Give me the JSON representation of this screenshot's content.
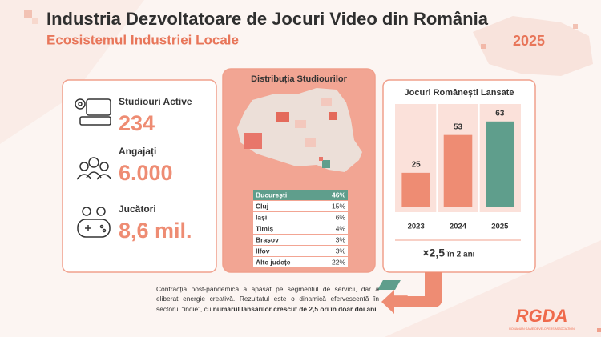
{
  "header": {
    "title": "Industria Dezvoltatoare de Jocuri Video din România",
    "subtitle": "Ecosistemul Industriei Locale",
    "year": "2025"
  },
  "stats": [
    {
      "label": "Studiouri Active",
      "value": "234"
    },
    {
      "label": "Angajați",
      "value": "6.000"
    },
    {
      "label": "Jucători",
      "value": "8,6 mil."
    }
  ],
  "distribution": {
    "title": "Distribuția Studiourilor",
    "rows": [
      [
        "București",
        "46%"
      ],
      [
        "Cluj",
        "15%"
      ],
      [
        "Iași",
        "6%"
      ],
      [
        "Timiș",
        "4%"
      ],
      [
        "Brașov",
        "3%"
      ],
      [
        "Ilfov",
        "3%"
      ],
      [
        "Alte județe",
        "22%"
      ]
    ]
  },
  "chart_data": {
    "type": "bar",
    "title": "Jocuri Românești Lansate",
    "categories": [
      "2023",
      "2024",
      "2025"
    ],
    "values": [
      25,
      53,
      63
    ],
    "colors": [
      "#ee8c73",
      "#ee8c73",
      "#5f9e8c"
    ],
    "ylim": [
      0,
      70
    ],
    "growth": "×2,5",
    "growth_note": "în 2 ani"
  },
  "footnote": {
    "parts": [
      "Contracția post-pandemică a apăsat pe segmentul de servicii, dar a eliberat energie creativă. Rezultatul este o dinamică efervescentă în sectorul “indie”, cu ",
      "numărul lansărilor crescut de 2,5 ori în doar doi ani",
      "."
    ]
  },
  "logo": {
    "name": "RGDA",
    "tagline": "ROMANIAN GAME DEVELOPERS ASSOCIATION"
  }
}
